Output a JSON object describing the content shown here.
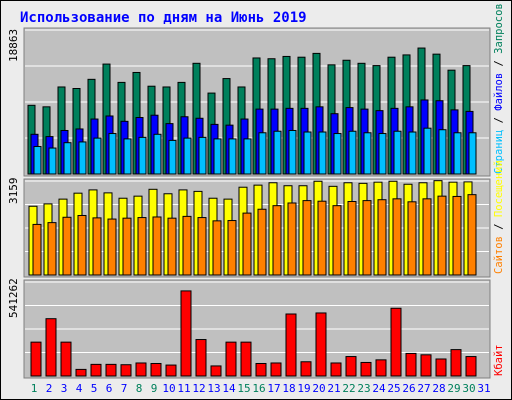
{
  "title": "Использование по дням на Июнь 2019",
  "colors": {
    "hits": "#00805c",
    "files": "#0000ff",
    "pages": "#00c0ff",
    "visits": "#ffff00",
    "sites": "#ff8000",
    "kbytes": "#ff0000",
    "title_text": "#0000ff",
    "panel_bg": "#c0c0c0",
    "weekend_label": "#00805c",
    "weekday_label": "#0000ff"
  },
  "chart_data": [
    {
      "type": "bar",
      "categories": [
        "1",
        "2",
        "3",
        "4",
        "5",
        "6",
        "7",
        "8",
        "9",
        "10",
        "11",
        "12",
        "13",
        "14",
        "15",
        "16",
        "17",
        "18",
        "19",
        "20",
        "21",
        "22",
        "23",
        "24",
        "25",
        "26",
        "27",
        "28",
        "29",
        "30",
        "31"
      ],
      "y_max_label": "18863",
      "y_max": 18863,
      "series": [
        {
          "name": "Запросов",
          "color_key": "hits",
          "values": [
            9000,
            8800,
            11400,
            11200,
            12400,
            14400,
            12000,
            13300,
            11500,
            11400,
            12000,
            14500,
            10600,
            12500,
            11400,
            15200,
            15100,
            15400,
            15300,
            15800,
            14300,
            14900,
            14500,
            14200,
            15300,
            15600,
            16500,
            15700,
            13600,
            14200,
            0
          ]
        },
        {
          "name": "Файлов",
          "color_key": "files",
          "values": [
            5200,
            4900,
            5700,
            5900,
            7200,
            7600,
            6900,
            7400,
            7700,
            6600,
            7500,
            7300,
            6500,
            6400,
            7200,
            8500,
            8500,
            8600,
            8600,
            8800,
            7900,
            8700,
            8500,
            8300,
            8600,
            8800,
            9700,
            9600,
            8400,
            8200,
            0
          ]
        },
        {
          "name": "Страниц",
          "color_key": "pages",
          "values": [
            3600,
            3400,
            4100,
            4200,
            4700,
            5300,
            4600,
            4800,
            5200,
            4400,
            4700,
            4800,
            4600,
            4600,
            4600,
            5400,
            5600,
            5700,
            5500,
            5500,
            5300,
            5600,
            5400,
            5300,
            5600,
            5500,
            6000,
            5800,
            5400,
            5400,
            0
          ]
        }
      ]
    },
    {
      "type": "bar",
      "categories": [
        "1",
        "2",
        "3",
        "4",
        "5",
        "6",
        "7",
        "8",
        "9",
        "10",
        "11",
        "12",
        "13",
        "14",
        "15",
        "16",
        "17",
        "18",
        "19",
        "20",
        "21",
        "22",
        "23",
        "24",
        "25",
        "26",
        "27",
        "28",
        "29",
        "30",
        "31"
      ],
      "y_max_label": "3159",
      "y_max": 3159,
      "series": [
        {
          "name": "Посещений",
          "color_key": "visits",
          "values": [
            2310,
            2390,
            2550,
            2750,
            2860,
            2760,
            2580,
            2650,
            2880,
            2730,
            2860,
            2810,
            2580,
            2550,
            2950,
            3020,
            3100,
            3000,
            3000,
            3150,
            2980,
            3100,
            3080,
            3120,
            3150,
            3050,
            3100,
            3170,
            3120,
            3130,
            0
          ]
        },
        {
          "name": "Сайтов",
          "color_key": "sites",
          "values": [
            1700,
            1760,
            1940,
            2000,
            1920,
            1880,
            1910,
            1930,
            1950,
            1910,
            1970,
            1930,
            1820,
            1830,
            2080,
            2210,
            2330,
            2420,
            2500,
            2480,
            2330,
            2470,
            2500,
            2530,
            2560,
            2460,
            2560,
            2650,
            2640,
            2700,
            0
          ]
        }
      ]
    },
    {
      "type": "bar",
      "categories": [
        "1",
        "2",
        "3",
        "4",
        "5",
        "6",
        "7",
        "8",
        "9",
        "10",
        "11",
        "12",
        "13",
        "14",
        "15",
        "16",
        "17",
        "18",
        "19",
        "20",
        "21",
        "22",
        "23",
        "24",
        "25",
        "26",
        "27",
        "28",
        "29",
        "30",
        "31"
      ],
      "y_max_label": "541262",
      "y_max": 541262,
      "series": [
        {
          "name": "Кбайт",
          "color_key": "kbytes",
          "values": [
            195000,
            330000,
            195000,
            38000,
            67000,
            67000,
            65000,
            75000,
            72000,
            63000,
            490000,
            210000,
            58000,
            195000,
            195000,
            72000,
            75000,
            357000,
            82000,
            363000,
            75000,
            112000,
            78000,
            93000,
            390000,
            130000,
            122000,
            98000,
            152000,
            112000,
            0
          ]
        }
      ]
    }
  ],
  "legend_top": {
    "hits": "Запросов",
    "sep1": "/",
    "files": "Файлов",
    "sep2": "/",
    "pages": "Страниц"
  },
  "legend_mid": {
    "visits": "Посещений",
    "sep": "/",
    "sites": "Сайтов"
  },
  "legend_bottom": {
    "kbytes": "Кбайт"
  },
  "weekend_days": [
    1,
    8,
    9,
    15,
    16,
    22,
    23,
    29,
    30
  ]
}
